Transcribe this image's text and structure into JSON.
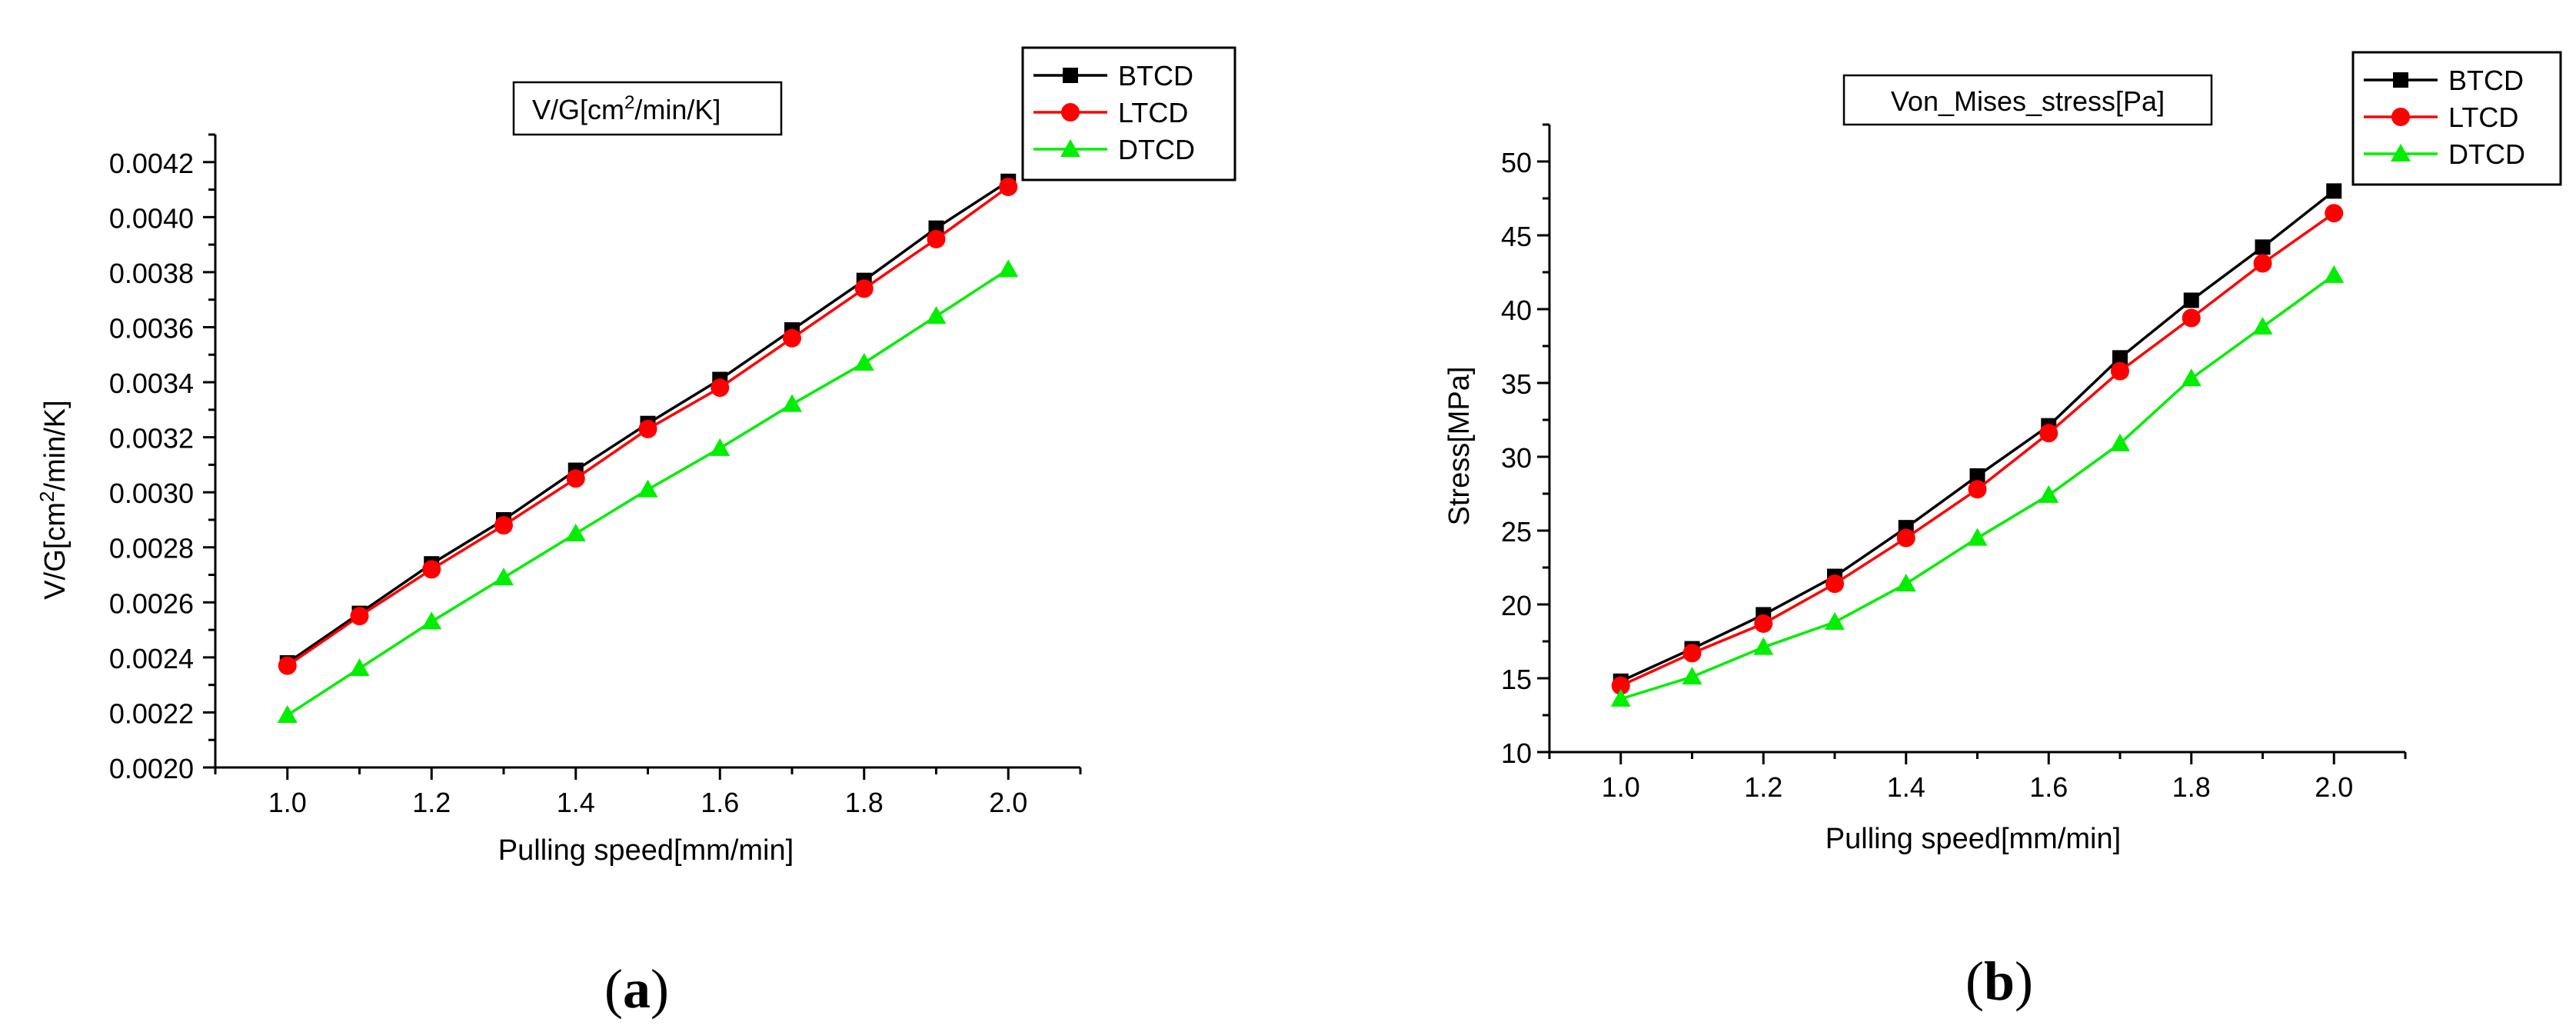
{
  "chart_data": [
    {
      "type": "line",
      "panel_label": "a",
      "title": "V/G[cm",
      "title_sup": "2",
      "title_rest": "/min/K]",
      "xlabel": "Pulling speed[mm/min]",
      "ylabel": "V/G[cm",
      "ylabel_sup": "2",
      "ylabel_rest": "/min/K]",
      "xlim": [
        0.9,
        2.1
      ],
      "ylim": [
        0.002,
        0.0043
      ],
      "xticks": [
        1.0,
        1.2,
        1.4,
        1.6,
        1.8,
        2.0
      ],
      "xtick_labels": [
        "1.0",
        "1.2",
        "1.4",
        "1.6",
        "1.8",
        "2.0"
      ],
      "yticks": [
        0.002,
        0.0022,
        0.0024,
        0.0026,
        0.0028,
        0.003,
        0.0032,
        0.0034,
        0.0036,
        0.0038,
        0.004,
        0.0042
      ],
      "ytick_labels": [
        "0.0020",
        "0.0022",
        "0.0024",
        "0.0026",
        "0.0028",
        "0.0030",
        "0.0032",
        "0.0034",
        "0.0036",
        "0.0038",
        "0.0040",
        "0.0042"
      ],
      "legend_position": "top-right",
      "x": [
        1.0,
        1.1,
        1.2,
        1.3,
        1.4,
        1.5,
        1.6,
        1.7,
        1.8,
        1.9,
        2.0
      ],
      "series": [
        {
          "name": "BTCD",
          "color": "#000000",
          "marker": "square",
          "values": [
            0.00238,
            0.00256,
            0.00274,
            0.0029,
            0.00308,
            0.00325,
            0.00341,
            0.00359,
            0.00377,
            0.00396,
            0.00413
          ]
        },
        {
          "name": "LTCD",
          "color": "#ff0000",
          "marker": "circle",
          "values": [
            0.00237,
            0.00255,
            0.00272,
            0.00288,
            0.00305,
            0.00323,
            0.00338,
            0.00356,
            0.00374,
            0.00392,
            0.00411
          ]
        },
        {
          "name": "DTCD",
          "color": "#00ee00",
          "marker": "triangle",
          "values": [
            0.00219,
            0.00236,
            0.00253,
            0.00269,
            0.00285,
            0.00301,
            0.00316,
            0.00332,
            0.00347,
            0.00364,
            0.00381
          ]
        }
      ]
    },
    {
      "type": "line",
      "panel_label": "b",
      "title": "Von_Mises_stress[Pa]",
      "xlabel": "Pulling speed[mm/min]",
      "ylabel": "Stress[MPa]",
      "xlim": [
        0.9,
        2.1
      ],
      "ylim": [
        10,
        52.5
      ],
      "xticks": [
        1.0,
        1.2,
        1.4,
        1.6,
        1.8,
        2.0
      ],
      "xtick_labels": [
        "1.0",
        "1.2",
        "1.4",
        "1.6",
        "1.8",
        "2.0"
      ],
      "yticks": [
        10,
        15,
        20,
        25,
        30,
        35,
        40,
        45,
        50
      ],
      "ytick_labels": [
        "10",
        "15",
        "20",
        "25",
        "30",
        "35",
        "40",
        "45",
        "50"
      ],
      "legend_position": "top-right",
      "x": [
        1.0,
        1.1,
        1.2,
        1.3,
        1.4,
        1.5,
        1.6,
        1.7,
        1.8,
        1.9,
        2.0
      ],
      "series": [
        {
          "name": "BTCD",
          "color": "#000000",
          "marker": "square",
          "values": [
            14.8,
            17.0,
            19.3,
            21.9,
            25.2,
            28.7,
            32.1,
            36.7,
            40.6,
            44.2,
            48.0
          ]
        },
        {
          "name": "LTCD",
          "color": "#ff0000",
          "marker": "circle",
          "values": [
            14.5,
            16.7,
            18.7,
            21.4,
            24.5,
            27.8,
            31.6,
            35.8,
            39.4,
            43.1,
            46.5
          ]
        },
        {
          "name": "DTCD",
          "color": "#00ee00",
          "marker": "triangle",
          "values": [
            13.6,
            15.1,
            17.1,
            18.8,
            21.4,
            24.5,
            27.4,
            30.9,
            35.3,
            38.8,
            42.3
          ]
        }
      ]
    }
  ]
}
